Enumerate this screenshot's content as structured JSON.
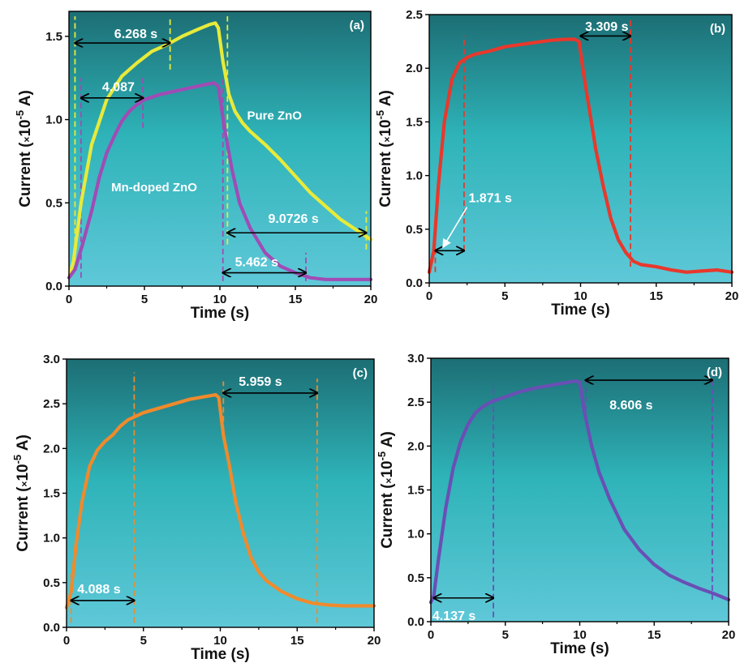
{
  "chart_data": [
    {
      "panel": "(a)",
      "type": "line",
      "xlabel": "Time (s)",
      "ylabel": {
        "pre": "Current (",
        "times": "×",
        "base": "10",
        "exp": "-5",
        "post": " A)"
      },
      "xlim": [
        0,
        20
      ],
      "ylim": [
        0,
        1.65
      ],
      "xticks": [
        "0",
        "5",
        "10",
        "15",
        "20"
      ],
      "yticks": [
        "0.0",
        "0.5",
        "1.0",
        "1.5"
      ],
      "series": [
        {
          "name": "Pure ZnO",
          "color": "#e8ea3a",
          "x": [
            0,
            0.3,
            0.8,
            1.5,
            2.5,
            3.5,
            4.5,
            5.5,
            6.5,
            7.5,
            8.5,
            9.3,
            9.7,
            9.9,
            10.2,
            10.6,
            11.0,
            11.5,
            12.0,
            13.0,
            14.0,
            15.0,
            16.0,
            17.0,
            18.0,
            19.0,
            20.0
          ],
          "y": [
            0.05,
            0.15,
            0.5,
            0.85,
            1.12,
            1.26,
            1.34,
            1.41,
            1.45,
            1.5,
            1.54,
            1.57,
            1.58,
            1.55,
            1.35,
            1.15,
            1.05,
            0.98,
            0.93,
            0.85,
            0.76,
            0.66,
            0.56,
            0.48,
            0.4,
            0.34,
            0.28
          ]
        },
        {
          "name": "Mn-doped ZnO",
          "color": "#a14bb5",
          "x": [
            0,
            0.4,
            0.9,
            1.5,
            2.0,
            2.5,
            3.0,
            3.5,
            4.0,
            4.5,
            5.0,
            6.0,
            7.0,
            8.0,
            9.0,
            9.6,
            9.9,
            10.3,
            10.8,
            11.3,
            12.0,
            13.0,
            14.0,
            15.0,
            16.0,
            17.0,
            18.0,
            19.0,
            20.0
          ],
          "y": [
            0.05,
            0.1,
            0.25,
            0.45,
            0.65,
            0.8,
            0.9,
            0.99,
            1.05,
            1.09,
            1.12,
            1.15,
            1.17,
            1.19,
            1.21,
            1.22,
            1.2,
            0.95,
            0.7,
            0.5,
            0.35,
            0.2,
            0.12,
            0.08,
            0.05,
            0.04,
            0.04,
            0.04,
            0.04
          ]
        }
      ],
      "annotations": [
        {
          "text": "6.268 s",
          "x1": 0.4,
          "x2": 6.7,
          "y": 1.46,
          "label_x": 3.0,
          "label_y": 1.49,
          "vlines": [
            {
              "x": 0.4,
              "color": "#e8ea3a",
              "y1": 0.1,
              "y2": 1.62
            },
            {
              "x": 6.7,
              "color": "#e8ea3a",
              "y1": 1.3,
              "y2": 1.62
            }
          ]
        },
        {
          "text": "4.087",
          "x1": 0.8,
          "x2": 4.9,
          "y": 1.13,
          "label_x": 2.2,
          "label_y": 1.17,
          "vlines": [
            {
              "x": 0.8,
              "color": "#a14bb5",
              "y1": 0.05,
              "y2": 1.25
            },
            {
              "x": 4.9,
              "color": "#a14bb5",
              "y1": 0.95,
              "y2": 1.25
            }
          ]
        },
        {
          "text": "9.0726 s",
          "x1": 10.5,
          "x2": 19.7,
          "y": 0.32,
          "label_x": 13.2,
          "label_y": 0.38,
          "vlines": [
            {
              "x": 10.5,
              "color": "#e8ea3a",
              "y1": 0.25,
              "y2": 1.62
            },
            {
              "x": 19.7,
              "color": "#e8ea3a",
              "y1": 0.22,
              "y2": 0.45
            }
          ]
        },
        {
          "text": "5.462 s",
          "x1": 10.2,
          "x2": 15.7,
          "y": 0.08,
          "label_x": 11.0,
          "label_y": 0.12,
          "vlines": [
            {
              "x": 10.2,
              "color": "#a14bb5",
              "y1": 0.03,
              "y2": 1.25
            },
            {
              "x": 15.7,
              "color": "#a14bb5",
              "y1": 0.03,
              "y2": 0.2
            }
          ]
        }
      ],
      "series_labels": [
        {
          "text": "Pure ZnO",
          "x": 11.8,
          "y": 1.0
        },
        {
          "text": "Mn-doped ZnO",
          "x": 2.8,
          "y": 0.57
        }
      ]
    },
    {
      "panel": "(b)",
      "type": "line",
      "xlabel": "Time (s)",
      "ylabel": {
        "pre": "Current (",
        "times": "×",
        "base": "10",
        "exp": "-5",
        "post": " A)"
      },
      "xlim": [
        0,
        20
      ],
      "ylim": [
        0,
        2.5
      ],
      "xticks": [
        "0",
        "5",
        "10",
        "15",
        "20"
      ],
      "yticks": [
        "0.0",
        "0.5",
        "1.0",
        "1.5",
        "2.0",
        "2.5"
      ],
      "series": [
        {
          "name": "",
          "color": "#e8382c",
          "x": [
            0,
            0.3,
            0.6,
            1.0,
            1.5,
            2.0,
            2.5,
            3.0,
            4.0,
            5.0,
            6.0,
            7.0,
            8.0,
            9.0,
            9.6,
            9.9,
            10.2,
            10.6,
            11.0,
            11.5,
            12.0,
            12.5,
            13.0,
            13.5,
            14.0,
            15.0,
            16.0,
            17.0,
            18.0,
            19.0,
            20.0
          ],
          "y": [
            0.1,
            0.3,
            0.9,
            1.5,
            1.9,
            2.05,
            2.1,
            2.13,
            2.16,
            2.2,
            2.22,
            2.24,
            2.26,
            2.27,
            2.27,
            2.25,
            1.95,
            1.6,
            1.25,
            0.9,
            0.6,
            0.4,
            0.28,
            0.2,
            0.17,
            0.15,
            0.12,
            0.1,
            0.11,
            0.12,
            0.1
          ]
        }
      ],
      "annotations": [
        {
          "text": "1.871 s",
          "x1": 0.4,
          "x2": 2.3,
          "y": 0.3,
          "label_x": 2.6,
          "label_y": 0.75,
          "vlines": [
            {
              "x": 0.4,
              "color": "#e8382c",
              "y1": 0.1,
              "y2": 0.6
            },
            {
              "x": 2.3,
              "color": "#e8382c",
              "y1": 0.3,
              "y2": 2.3
            }
          ],
          "arrow_to": [
            0.9,
            0.33
          ]
        },
        {
          "text": "3.309 s",
          "x1": 10.0,
          "x2": 13.3,
          "y": 2.3,
          "label_x": 10.3,
          "label_y": 2.35,
          "vlines": [
            {
              "x": 13.3,
              "color": "#e8382c",
              "y1": 0.15,
              "y2": 2.45
            }
          ]
        }
      ],
      "series_labels": []
    },
    {
      "panel": "(c)",
      "type": "line",
      "xlabel": "Time (s)",
      "ylabel": {
        "pre": "Current (",
        "times": "×",
        "base": "10",
        "exp": "-5",
        "post": " A)"
      },
      "xlim": [
        0,
        20
      ],
      "ylim": [
        0,
        3.0
      ],
      "xticks": [
        "0",
        "5",
        "10",
        "15",
        "20"
      ],
      "yticks": [
        "0.0",
        "0.5",
        "1.0",
        "1.5",
        "2.0",
        "2.5",
        "3.0"
      ],
      "series": [
        {
          "name": "",
          "color": "#f08a2c",
          "x": [
            0,
            0.3,
            0.6,
            1.0,
            1.5,
            2.0,
            2.5,
            3.0,
            3.5,
            4.0,
            4.5,
            5.0,
            6.0,
            7.0,
            8.0,
            9.0,
            9.7,
            9.9,
            10.2,
            10.6,
            11.0,
            11.5,
            12.0,
            12.5,
            13.0,
            14.0,
            15.0,
            16.0,
            17.0,
            18.0,
            19.0,
            20.0
          ],
          "y": [
            0.22,
            0.4,
            0.9,
            1.4,
            1.8,
            1.98,
            2.08,
            2.15,
            2.25,
            2.32,
            2.36,
            2.4,
            2.45,
            2.5,
            2.55,
            2.58,
            2.6,
            2.57,
            2.15,
            1.8,
            1.4,
            1.05,
            0.78,
            0.62,
            0.52,
            0.4,
            0.32,
            0.27,
            0.25,
            0.24,
            0.24,
            0.24
          ]
        }
      ],
      "annotations": [
        {
          "text": "4.088 s",
          "x1": 0.3,
          "x2": 4.4,
          "y": 0.3,
          "label_x": 0.7,
          "label_y": 0.38,
          "vlines": [
            {
              "x": 0.3,
              "color": "#f08a2c",
              "y1": 0.05,
              "y2": 0.6
            },
            {
              "x": 4.4,
              "color": "#f08a2c",
              "y1": 0.05,
              "y2": 2.85
            }
          ]
        },
        {
          "text": "5.959 s",
          "x1": 10.2,
          "x2": 16.3,
          "y": 2.62,
          "label_x": 11.2,
          "label_y": 2.7,
          "vlines": [
            {
              "x": 10.2,
              "color": "#f08a2c",
              "y1": 2.2,
              "y2": 2.75
            },
            {
              "x": 16.3,
              "color": "#f08a2c",
              "y1": 0.05,
              "y2": 2.78
            }
          ]
        }
      ],
      "series_labels": []
    },
    {
      "panel": "(d)",
      "type": "line",
      "xlabel": "Time (s)",
      "ylabel": {
        "pre": "Current (",
        "times": "×",
        "base": "10",
        "exp": "-5",
        "post": " A)"
      },
      "xlim": [
        0,
        20
      ],
      "ylim": [
        0,
        3.0
      ],
      "xticks": [
        "0",
        "5",
        "10",
        "15",
        "20"
      ],
      "yticks": [
        "0.0",
        "0.5",
        "1.0",
        "1.5",
        "2.0",
        "2.5",
        "3.0"
      ],
      "series": [
        {
          "name": "",
          "color": "#6a4fb5",
          "x": [
            0,
            0.2,
            0.5,
            1.0,
            1.5,
            2.0,
            2.5,
            3.0,
            3.5,
            4.0,
            5.0,
            6.0,
            7.0,
            8.0,
            9.0,
            9.7,
            10.0,
            10.3,
            10.8,
            11.3,
            12.0,
            13.0,
            14.0,
            15.0,
            16.0,
            17.0,
            18.0,
            19.0,
            20.0
          ],
          "y": [
            0.22,
            0.3,
            0.7,
            1.3,
            1.75,
            2.05,
            2.25,
            2.38,
            2.45,
            2.5,
            2.56,
            2.62,
            2.66,
            2.69,
            2.72,
            2.74,
            2.73,
            2.4,
            2.0,
            1.7,
            1.4,
            1.05,
            0.82,
            0.65,
            0.53,
            0.45,
            0.38,
            0.32,
            0.25
          ]
        }
      ],
      "annotations": [
        {
          "text": "4.137 s",
          "x1": 0.2,
          "x2": 4.2,
          "y": 0.27,
          "label_x": 0.1,
          "label_y": 0.02,
          "vlines": [
            {
              "x": 4.2,
              "color": "#6a4fb5",
              "y1": 0.05,
              "y2": 2.7
            }
          ]
        },
        {
          "text": "8.606 s",
          "x1": 10.4,
          "x2": 18.9,
          "y": 2.75,
          "label_x": 12.0,
          "label_y": 2.42,
          "vlines": [
            {
              "x": 10.4,
              "color": "#6a4fb5",
              "y1": 2.4,
              "y2": 2.8
            },
            {
              "x": 18.9,
              "color": "#6a4fb5",
              "y1": 0.25,
              "y2": 2.8
            }
          ]
        }
      ],
      "series_labels": []
    }
  ]
}
